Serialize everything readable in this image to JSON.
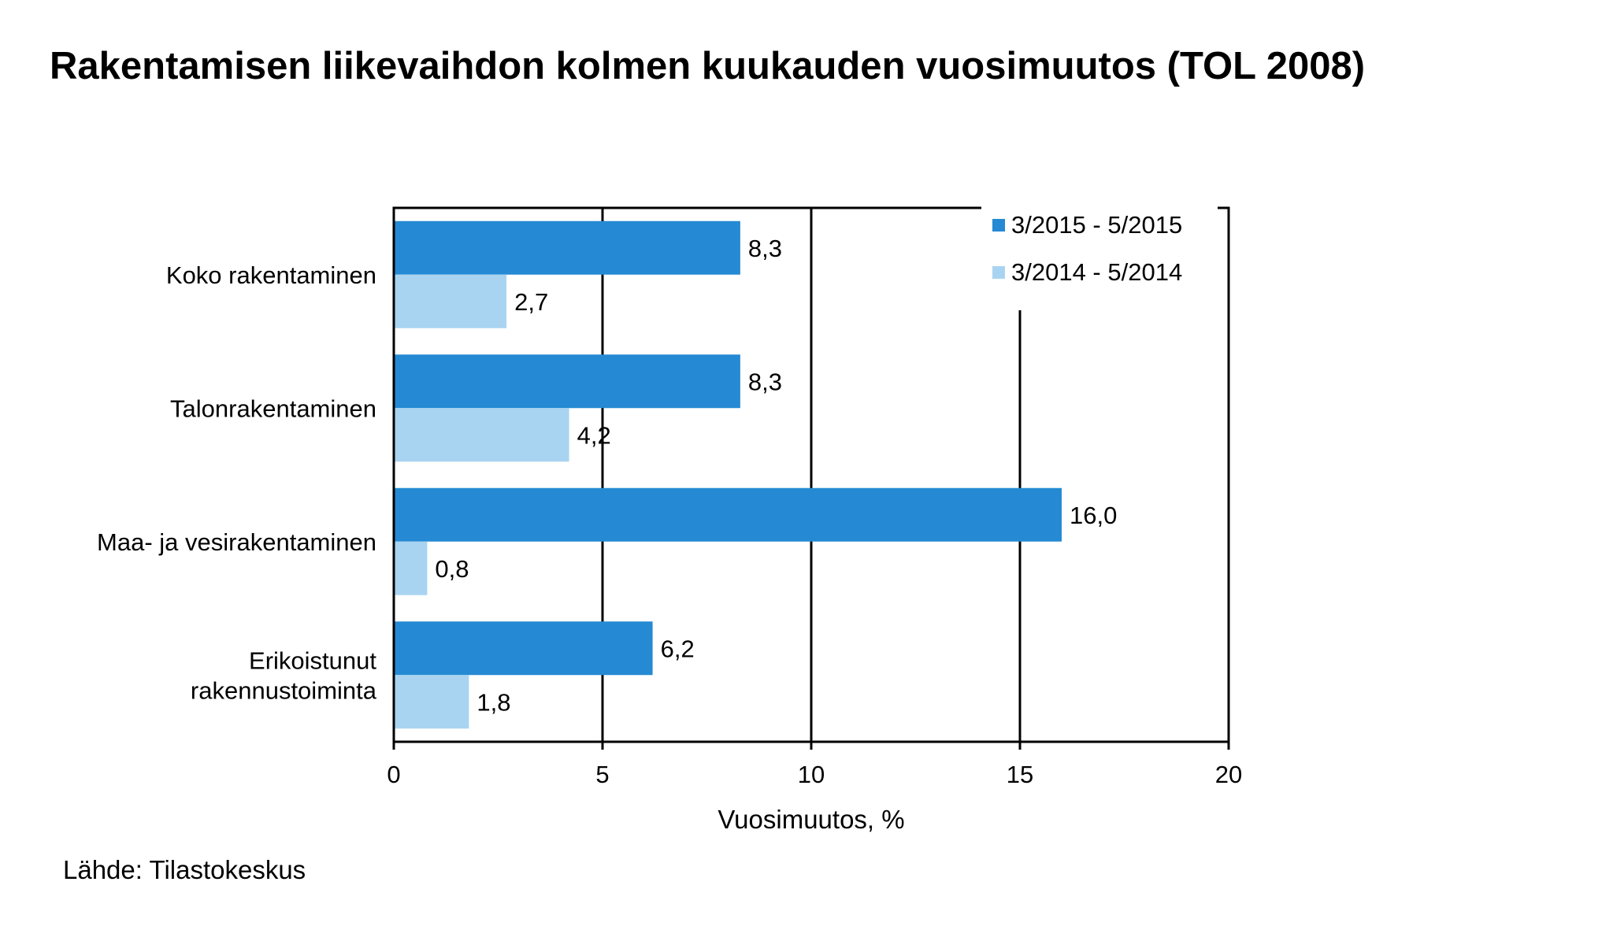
{
  "chart_data": {
    "type": "bar",
    "orientation": "horizontal",
    "title": "Rakentamisen liikevaihdon kolmen kuukauden vuosimuutos (TOL 2008)",
    "xlabel": "Vuosimuutos, %",
    "ylabel": "",
    "xlim": [
      0,
      20
    ],
    "xticks": [
      0,
      5,
      10,
      15,
      20
    ],
    "grid": "vertical",
    "legend_position": "top-right",
    "categories": [
      [
        "Koko rakentaminen"
      ],
      [
        "Talonrakentaminen"
      ],
      [
        "Maa- ja vesirakentaminen"
      ],
      [
        "Erikoistunut",
        "rakennustoiminta"
      ]
    ],
    "series": [
      {
        "name": "3/2015 - 5/2015",
        "color": "#258ad3",
        "values": [
          8.3,
          8.3,
          16.0,
          6.2
        ],
        "labels": [
          "8,3",
          "8,3",
          "16,0",
          "6,2"
        ]
      },
      {
        "name": "3/2014 - 5/2014",
        "color": "#a9d4f1",
        "values": [
          2.7,
          4.2,
          0.8,
          1.8
        ],
        "labels": [
          "2,7",
          "4,2",
          "0,8",
          "1,8"
        ]
      }
    ]
  },
  "source": "Lähde: Tilastokeskus"
}
